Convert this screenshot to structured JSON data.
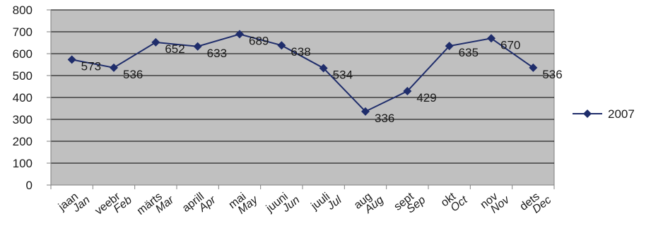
{
  "chart_data": {
    "type": "line",
    "categories": [
      {
        "et": "jaan",
        "en": "Jan"
      },
      {
        "et": "veebr",
        "en": "Feb"
      },
      {
        "et": "märts",
        "en": "Mar"
      },
      {
        "et": "aprill",
        "en": "Apr"
      },
      {
        "et": "mai",
        "en": "May"
      },
      {
        "et": "juuni",
        "en": "Jun"
      },
      {
        "et": "juuli",
        "en": "Jul"
      },
      {
        "et": "aug",
        "en": "Aug"
      },
      {
        "et": "sept",
        "en": "Sep"
      },
      {
        "et": "okt",
        "en": "Oct"
      },
      {
        "et": "nov",
        "en": "Nov"
      },
      {
        "et": "dets",
        "en": "Dec"
      }
    ],
    "series": [
      {
        "name": "2007",
        "values": [
          573,
          536,
          652,
          633,
          689,
          638,
          534,
          336,
          429,
          635,
          670,
          536
        ]
      }
    ],
    "ylim": [
      0,
      800
    ],
    "yticks": [
      0,
      100,
      200,
      300,
      400,
      500,
      600,
      700,
      800
    ],
    "grid": true,
    "legend": "right",
    "colors": {
      "series": "#1f2d6b",
      "plot_bg": "#c0c0c0",
      "grid": "#000000"
    }
  }
}
